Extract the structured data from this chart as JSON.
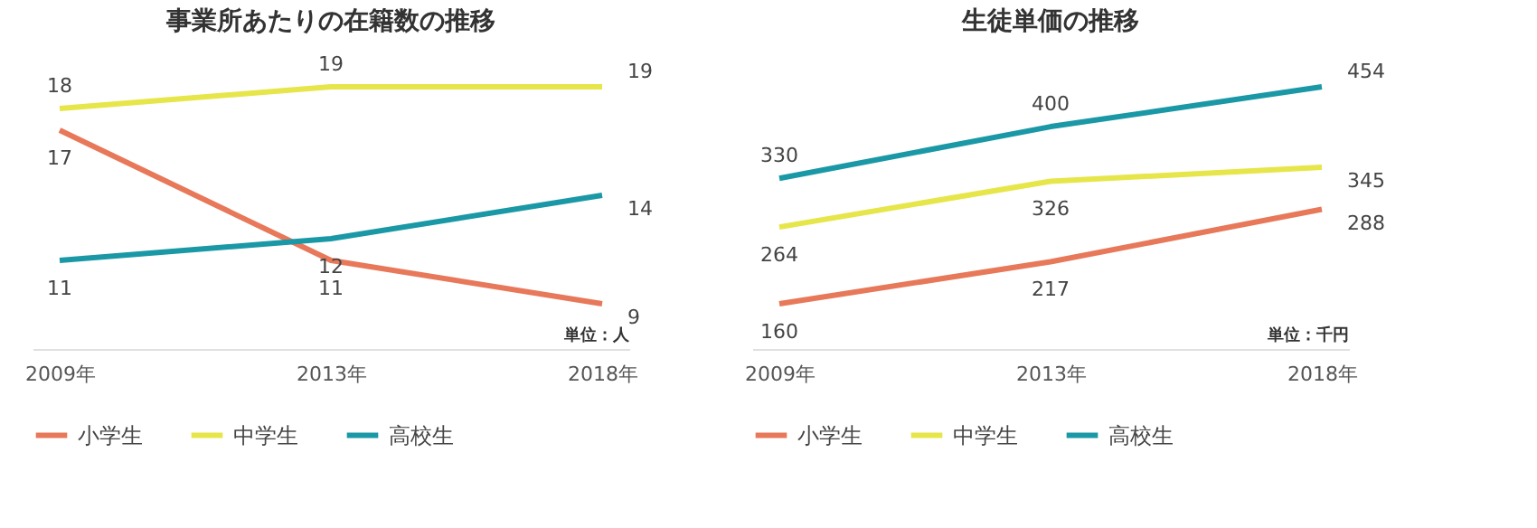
{
  "chart_data": [
    {
      "type": "line",
      "title": "事業所あたりの在籍数の推移",
      "categories": [
        "2009年",
        "2013年",
        "2018年"
      ],
      "series": [
        {
          "name": "小学生",
          "color": "#e8785a",
          "values": [
            17,
            11,
            9
          ]
        },
        {
          "name": "中学生",
          "color": "#e6e64a",
          "values": [
            18,
            19,
            19
          ]
        },
        {
          "name": "高校生",
          "color": "#1a98a6",
          "values": [
            11,
            12,
            14
          ]
        }
      ],
      "data_labels": true,
      "legend": "bottom",
      "grid": false,
      "annotations": [
        "単位：人"
      ]
    },
    {
      "type": "line",
      "title": "生徒単価の推移",
      "categories": [
        "2009年",
        "2013年",
        "2018年"
      ],
      "series": [
        {
          "name": "小学生",
          "color": "#e8785a",
          "values": [
            160,
            217,
            288
          ]
        },
        {
          "name": "中学生",
          "color": "#e6e64a",
          "values": [
            264,
            326,
            345
          ]
        },
        {
          "name": "高校生",
          "color": "#1a98a6",
          "values": [
            330,
            400,
            454
          ]
        }
      ],
      "data_labels": true,
      "legend": "bottom",
      "grid": false,
      "annotations": [
        "単位：千円"
      ]
    }
  ]
}
